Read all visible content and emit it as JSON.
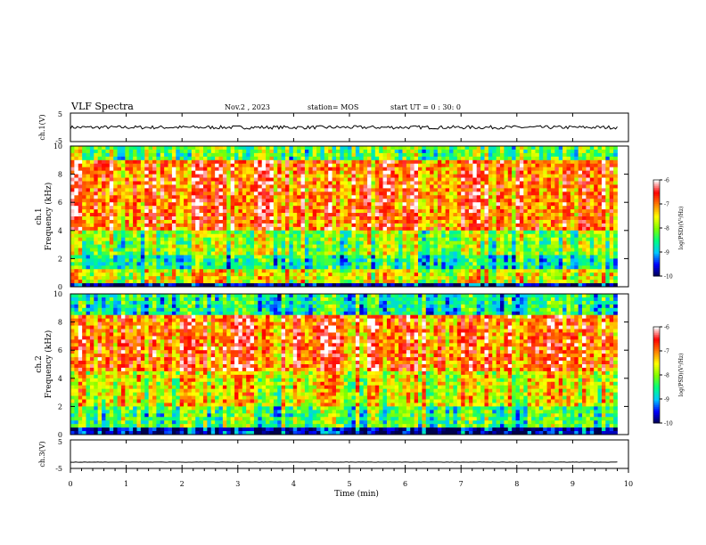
{
  "header": {
    "title": "VLF Spectra",
    "date": "Nov.2 , 2023",
    "station": "station= MOS",
    "start": "start UT = 0 : 30: 0"
  },
  "colors": {
    "colormap": [
      "#00004a",
      "#0000ff",
      "#00c8ff",
      "#00ff80",
      "#80ff00",
      "#ffff00",
      "#ff8000",
      "#ff0000",
      "#ffffff"
    ],
    "trace": "#000000"
  },
  "chart_data": [
    {
      "type": "line",
      "panel": "ch1-waveform",
      "ylabel": "ch.1(V)",
      "yticklabels": [
        "5",
        "-5"
      ],
      "ylim": [
        -5,
        5
      ],
      "xlim": [
        0,
        10
      ],
      "approx_level": 0
    },
    {
      "type": "heatmap",
      "panel": "ch1-spectrogram",
      "ylabel_top": "ch.1",
      "ylabel": "Frequency (kHz)",
      "yticklabels": [
        "0",
        "2",
        "4",
        "6",
        "8",
        "10"
      ],
      "ylim": [
        0,
        10
      ],
      "xlim": [
        0,
        9.8
      ],
      "colorbar": {
        "label": "log(PSD)(V²/Hz)",
        "ticklabels": [
          "-6",
          "-7",
          "-8",
          "-9",
          "-10"
        ],
        "range": [
          -10,
          -6
        ]
      },
      "approx_band_levels": [
        {
          "freq": [
            0,
            0.3
          ],
          "level": -9.8
        },
        {
          "freq": [
            0.3,
            1.2
          ],
          "level": -7.6
        },
        {
          "freq": [
            1.2,
            2.2
          ],
          "level": -8.6
        },
        {
          "freq": [
            2.2,
            4.0
          ],
          "level": -8.0
        },
        {
          "freq": [
            4.0,
            9.0
          ],
          "level": -6.9
        },
        {
          "freq": [
            9.0,
            10.0
          ],
          "level": -8.2
        }
      ]
    },
    {
      "type": "heatmap",
      "panel": "ch2-spectrogram",
      "ylabel_top": "ch.2",
      "ylabel": "Frequency (kHz)",
      "yticklabels": [
        "0",
        "2",
        "4",
        "6",
        "8",
        "10"
      ],
      "ylim": [
        0,
        10
      ],
      "xlim": [
        0,
        9.8
      ],
      "colorbar": {
        "label": "log(PSD)(V²/Hz)",
        "ticklabels": [
          "-6",
          "-7",
          "-8",
          "-9",
          "-10"
        ],
        "range": [
          -10,
          -6
        ]
      },
      "approx_band_levels": [
        {
          "freq": [
            0,
            0.4
          ],
          "level": -9.8
        },
        {
          "freq": [
            0.4,
            2.0
          ],
          "level": -8.3
        },
        {
          "freq": [
            2.0,
            4.5
          ],
          "level": -7.6
        },
        {
          "freq": [
            4.5,
            8.5
          ],
          "level": -6.9
        },
        {
          "freq": [
            8.5,
            10.0
          ],
          "level": -8.6
        }
      ]
    },
    {
      "type": "line",
      "panel": "ch3-waveform",
      "ylabel": "ch.3(V)",
      "yticklabels": [
        "5",
        "-5"
      ],
      "ylim": [
        -5,
        5
      ],
      "xlim": [
        0,
        10
      ],
      "approx_level": -2.8
    }
  ],
  "xaxis": {
    "label": "Time (min)",
    "ticklabels": [
      "0",
      "1",
      "2",
      "3",
      "4",
      "5",
      "6",
      "7",
      "8",
      "9",
      "10"
    ],
    "range": [
      0,
      10
    ]
  }
}
